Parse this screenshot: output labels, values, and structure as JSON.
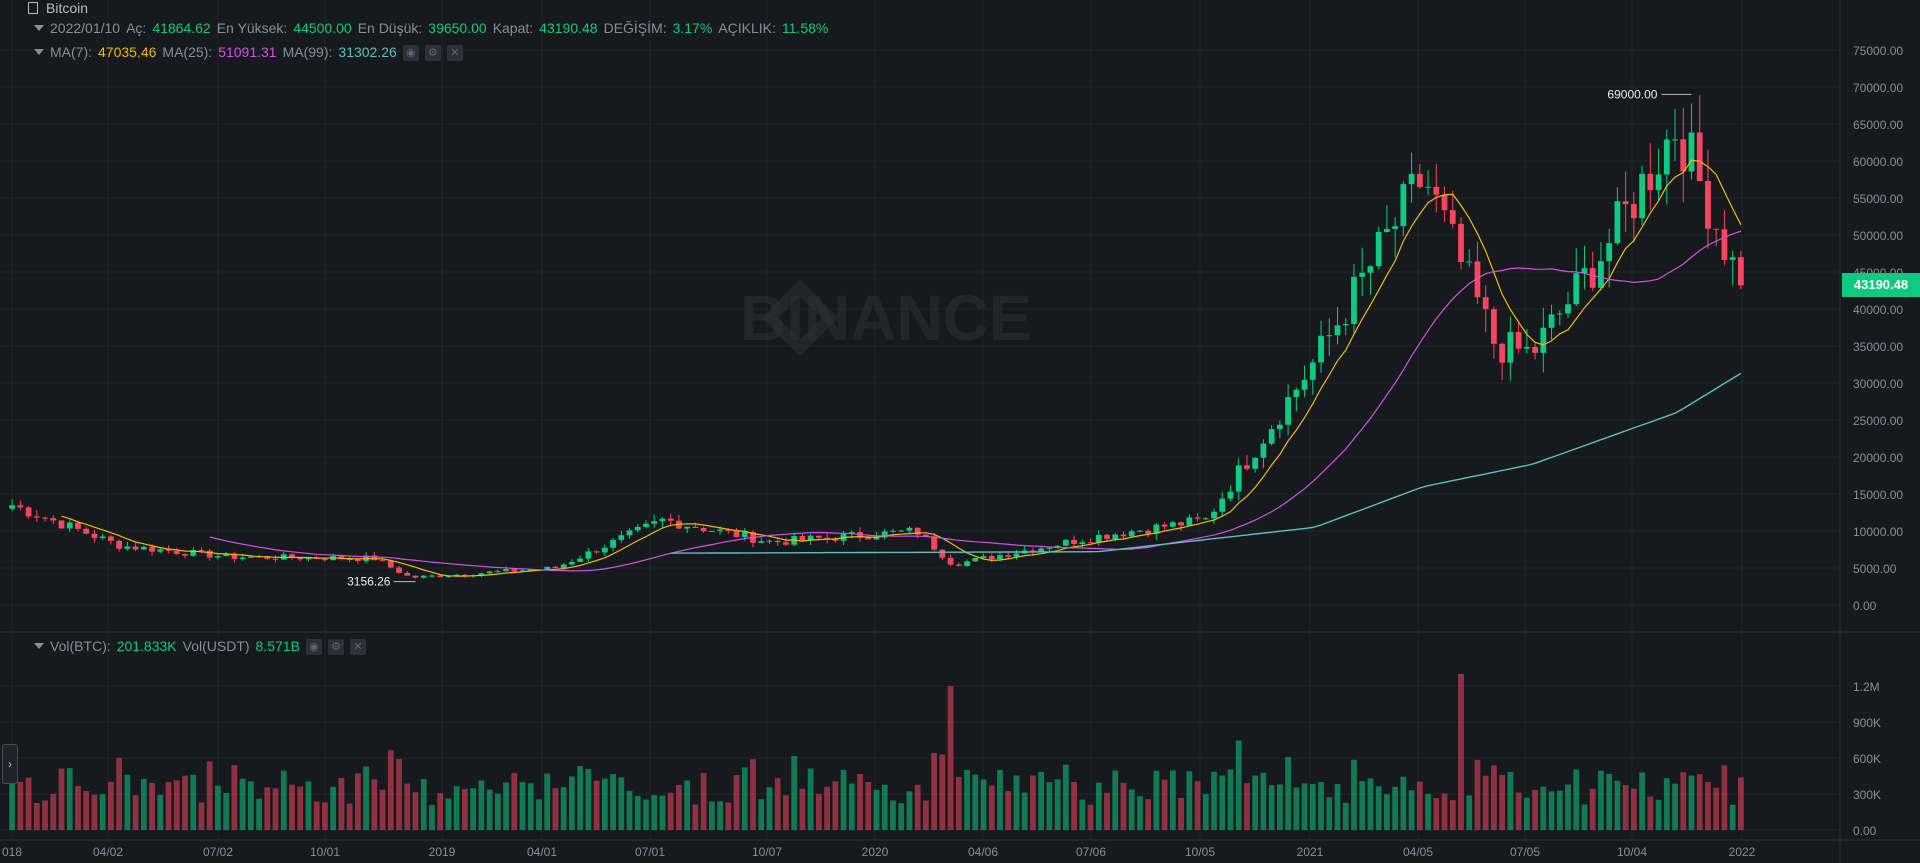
{
  "symbol": "Bitcoin",
  "ohlc": {
    "date": "2022/01/10",
    "open_label": "Aç:",
    "open": "41864.62",
    "high_label": "En Yüksek:",
    "high": "44500.00",
    "low_label": "En Düşük:",
    "low": "39650.00",
    "close_label": "Kapat:",
    "close": "43190.48",
    "change_label": "DEĞİŞİM:",
    "change": "3.17%",
    "amp_label": "AÇIKLIK:",
    "amp": "11.58%"
  },
  "ma": {
    "ma7_label": "MA(7):",
    "ma7": "47035.46",
    "ma25_label": "MA(25):",
    "ma25": "51091.31",
    "ma99_label": "MA(99):",
    "ma99": "31302.26"
  },
  "vol": {
    "btc_label": "Vol(BTC):",
    "btc": "201.833K",
    "usdt_label": "Vol(USDT)",
    "usdt": "8.571B"
  },
  "watermark": "BINANCE",
  "last_price": "43190.48",
  "annotations": {
    "high": "69000.00",
    "low": "3156.26"
  },
  "colors": {
    "up": "#0ecb81",
    "down": "#f6465d",
    "ma7": "#f0b90b",
    "ma25": "#d64ee6",
    "ma99": "#5bc0be"
  },
  "chart_data": {
    "type": "candlestick",
    "ylim": [
      0,
      75000
    ],
    "y_ticks": [
      "75000.00",
      "70000.00",
      "65000.00",
      "60000.00",
      "55000.00",
      "50000.00",
      "45000.00",
      "40000.00",
      "35000.00",
      "30000.00",
      "25000.00",
      "20000.00",
      "15000.00",
      "10000.00",
      "5000.00",
      "0.00"
    ],
    "vol_ticks": [
      "1.2M",
      "900K",
      "600K",
      "300K",
      "0.00"
    ],
    "x_ticks": [
      "018",
      "04/02",
      "07/02",
      "10/01",
      "2019",
      "04/01",
      "07/01",
      "10/07",
      "2020",
      "04/06",
      "07/06",
      "10/05",
      "2021",
      "04/05",
      "07/05",
      "10/04",
      "2022"
    ],
    "close_keyframes": [
      {
        "x": "2018",
        "y": 13500
      },
      {
        "x": "2018-Q2",
        "y": 8000
      },
      {
        "x": "2018-Q3",
        "y": 6500
      },
      {
        "x": "2018-11",
        "y": 6300
      },
      {
        "x": "2018-12",
        "y": 3700
      },
      {
        "x": "2019-04",
        "y": 5000
      },
      {
        "x": "2019-07",
        "y": 11500
      },
      {
        "x": "2019-10",
        "y": 8500
      },
      {
        "x": "2020-02",
        "y": 10000
      },
      {
        "x": "2020-03",
        "y": 5500
      },
      {
        "x": "2020-07",
        "y": 9300
      },
      {
        "x": "2020-10",
        "y": 11500
      },
      {
        "x": "2021-01",
        "y": 33000
      },
      {
        "x": "2021-04",
        "y": 58000
      },
      {
        "x": "2021-06",
        "y": 35000
      },
      {
        "x": "2021-07",
        "y": 34000
      },
      {
        "x": "2021-09",
        "y": 48000
      },
      {
        "x": "2021-11",
        "y": 65000
      },
      {
        "x": "2022-01",
        "y": 43190
      }
    ],
    "ma99_keyframes": [
      {
        "x": "2019-07",
        "y": 7000
      },
      {
        "x": "2020-07",
        "y": 7200
      },
      {
        "x": "2021-01",
        "y": 10500
      },
      {
        "x": "2021-04",
        "y": 16000
      },
      {
        "x": "2021-07",
        "y": 19000
      },
      {
        "x": "2021-11",
        "y": 26000
      },
      {
        "x": "2022-01",
        "y": 31302
      }
    ],
    "volume_peaks": [
      {
        "x": "2020-03",
        "v": 1200000
      },
      {
        "x": "2021-05",
        "v": 1300000
      }
    ]
  }
}
